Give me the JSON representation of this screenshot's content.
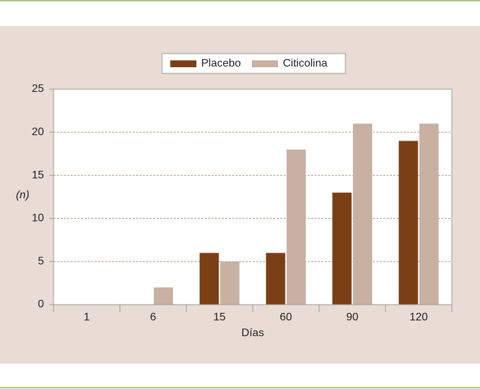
{
  "chart_data": {
    "type": "bar",
    "categories": [
      "1",
      "6",
      "15",
      "60",
      "90",
      "120"
    ],
    "series": [
      {
        "name": "Placebo",
        "color": "#7b3f16",
        "values": [
          0,
          0,
          6,
          6,
          13,
          19
        ]
      },
      {
        "name": "Citicolina",
        "color": "#c8b0a2",
        "values": [
          0,
          2,
          5,
          18,
          21,
          21
        ]
      }
    ],
    "x_label": "Días",
    "y_label": "(n)",
    "ylim": [
      0,
      25
    ],
    "yticks": [
      0,
      5,
      10,
      15,
      20,
      25
    ],
    "grid": true,
    "legend": "top"
  }
}
